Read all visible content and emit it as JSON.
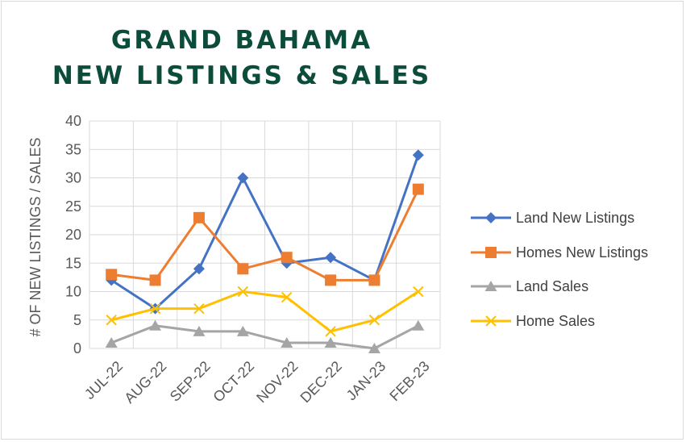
{
  "title_lines": [
    "GRAND BAHAMA",
    "NEW LISTINGS & SALES"
  ],
  "chart_data": {
    "type": "line",
    "title": "GRAND BAHAMA NEW LISTINGS & SALES",
    "xlabel": "",
    "ylabel": "# OF NEW LISTINGS / SALES",
    "ylim": [
      0,
      40
    ],
    "yticks": [
      0,
      5,
      10,
      15,
      20,
      25,
      30,
      35,
      40
    ],
    "grid": true,
    "legend_position": "right",
    "categories": [
      "JUL-22",
      "AUG-22",
      "SEP-22",
      "OCT-22",
      "NOV-22",
      "DEC-22",
      "JAN-23",
      "FEB-23"
    ],
    "series": [
      {
        "name": "Land New Listings",
        "values": [
          12,
          7,
          14,
          30,
          15,
          16,
          12,
          34
        ],
        "color": "#4472c4",
        "marker": "diamond"
      },
      {
        "name": "Homes New Listings",
        "values": [
          13,
          12,
          23,
          14,
          16,
          12,
          12,
          28
        ],
        "color": "#ed7d31",
        "marker": "square"
      },
      {
        "name": "Land Sales",
        "values": [
          1,
          4,
          3,
          3,
          1,
          1,
          0,
          4
        ],
        "color": "#a5a5a5",
        "marker": "triangle"
      },
      {
        "name": "Home Sales",
        "values": [
          5,
          7,
          7,
          10,
          9,
          3,
          5,
          10
        ],
        "color": "#ffc000",
        "marker": "x"
      }
    ]
  }
}
